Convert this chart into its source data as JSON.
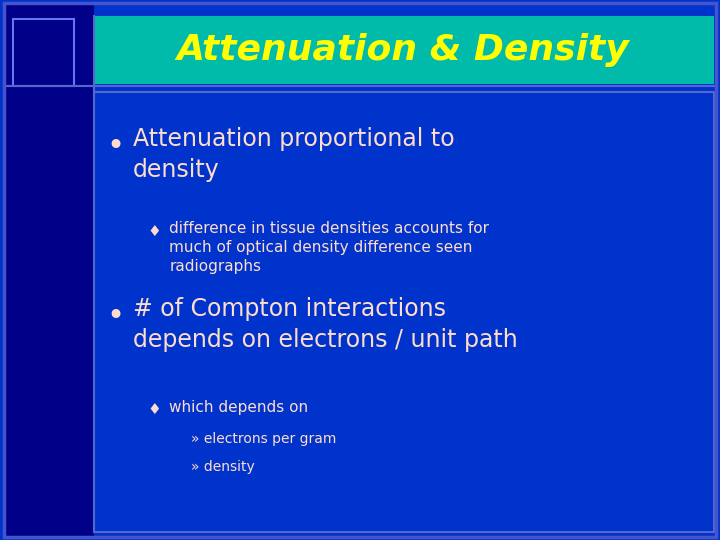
{
  "title": "Attenuation & Density",
  "title_color": "#FFFF00",
  "title_bg_color": "#00BBAA",
  "slide_bg_color": "#0033CC",
  "outer_bg_color": "#000088",
  "bullet_color": "#FFDDCC",
  "sub_color": "#FFDDCC",
  "diamond": "♦",
  "raquo": "»",
  "bullet": "•"
}
